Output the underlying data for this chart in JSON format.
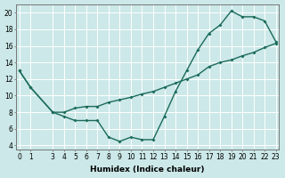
{
  "xlabel": "Humidex (Indice chaleur)",
  "background_color": "#cce8e8",
  "line_color": "#1a6b5a",
  "grid_color": "#ffffff",
  "x_ticks": [
    0,
    1,
    3,
    4,
    5,
    6,
    7,
    8,
    9,
    10,
    11,
    12,
    13,
    14,
    15,
    16,
    17,
    18,
    19,
    20,
    21,
    22,
    23
  ],
  "ylim": [
    3.5,
    21
  ],
  "xlim": [
    -0.3,
    23.3
  ],
  "series1_x": [
    0,
    1,
    3,
    4,
    5,
    6,
    7,
    8,
    9,
    10,
    11,
    12,
    13,
    14,
    15,
    16,
    17,
    18,
    19,
    20,
    21,
    22,
    23
  ],
  "series1_y": [
    13,
    11,
    8,
    7.5,
    7,
    7,
    7,
    5,
    4.5,
    5,
    4.7,
    4.7,
    7.5,
    10.5,
    13,
    15.5,
    17.5,
    18.5,
    20.2,
    19.5,
    19.5,
    19,
    16.5
  ],
  "series2_x": [
    0,
    1,
    3,
    4,
    5,
    6,
    7,
    8,
    9,
    10,
    11,
    12,
    13,
    14,
    15,
    16,
    17,
    18,
    19,
    20,
    21,
    22,
    23
  ],
  "series2_y": [
    13,
    11,
    8,
    8,
    8.5,
    8.7,
    8.7,
    9.2,
    9.5,
    9.8,
    10.2,
    10.5,
    11,
    11.5,
    12,
    12.5,
    13.5,
    14.0,
    14.3,
    14.8,
    15.2,
    15.8,
    16.3
  ],
  "yticks": [
    4,
    6,
    8,
    10,
    12,
    14,
    16,
    18,
    20
  ],
  "xlabel_fontsize": 6.5,
  "tick_fontsize": 5.5,
  "linewidth": 1.0,
  "markersize": 2.0
}
